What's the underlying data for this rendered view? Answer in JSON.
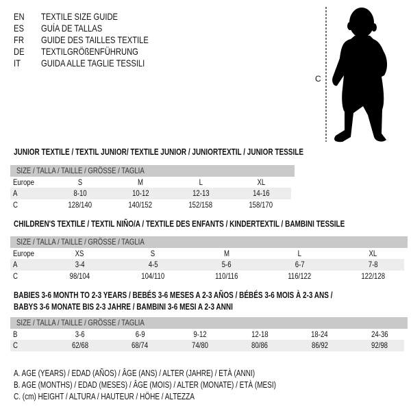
{
  "languages": [
    {
      "code": "EN",
      "text": "TEXTILE SIZE GUIDE"
    },
    {
      "code": "ES",
      "text": "GUÍA DE TALLAS"
    },
    {
      "code": "FR",
      "text": "GUIDE DES TAILLES TEXTILE"
    },
    {
      "code": "DE",
      "text": "TEXTILGRÖßENFÜHRUNG"
    },
    {
      "code": "IT",
      "text": "GUIDA ALLE TAGLIE TESSILI"
    }
  ],
  "figure": {
    "icon": "child-silhouette-icon",
    "measure_label": "C"
  },
  "size_header": "SIZE / TALLA / TAILLE / GRÖSSE / TAGLIA",
  "junior": {
    "title": "JUNIOR TEXTILE / TEXTIL JUNIOR/ TEXTILE JUNIOR / JUNIORTEXTIL / JUNIOR TESSILE",
    "rows": [
      {
        "label": "Europe",
        "values": [
          "S",
          "M",
          "L",
          "XL"
        ]
      },
      {
        "label": "A",
        "values": [
          "8-10",
          "10-12",
          "12-13",
          "14-16"
        ]
      },
      {
        "label": "C",
        "values": [
          "128/140",
          "140/152",
          "152/158",
          "158/170"
        ]
      }
    ]
  },
  "children": {
    "title": "CHILDREN'S TEXTILE / TEXTIL NIÑO/A / TEXTILE DES ENFANTS / KINDERTEXTIL / BAMBINI TESSILE",
    "rows": [
      {
        "label": "Europe",
        "values": [
          "XS",
          "S",
          "M",
          "L",
          "XL"
        ]
      },
      {
        "label": "A",
        "values": [
          "3-4",
          "4-5",
          "5-6",
          "6-7",
          "7-8"
        ]
      },
      {
        "label": "C",
        "values": [
          "98/104",
          "104/110",
          "110/116",
          "116/122",
          "122/128"
        ]
      }
    ]
  },
  "babies": {
    "title_line1": "BABIES 3-6 MONTH TO 2-3 YEARS / BEBÉS 3-6 MESES A 2-3 AÑOS / BÉBÉS 3-6 MOIS À 2-3 ANS /",
    "title_line2": "BABYS 3-6 MONATE BIS 2-3 JAHRE / BAMBINI 3-6 MESI A 2-3 ANNI",
    "rows": [
      {
        "label": "B",
        "values": [
          "3-6",
          "6-9",
          "9-12",
          "12-18",
          "18-24",
          "24-36"
        ]
      },
      {
        "label": "C",
        "values": [
          "62/68",
          "68/74",
          "74/80",
          "80/86",
          "86/92",
          "92/98"
        ]
      }
    ]
  },
  "legend": [
    "A. AGE (YEARS) / EDAD (AÑOS) / ÂGE (ANS) / ALTER (JAHRE) / ETÀ (ANNI)",
    "B. AGE (MONTHS) / EDAD (MESES) / ÂGE (MOIS) / ALTER (MONATE) / ETÀ (MESI)",
    "C. (cm) HEIGHT / ALTURA / HAUTEUR / HÖHE / ALTEZZA"
  ]
}
